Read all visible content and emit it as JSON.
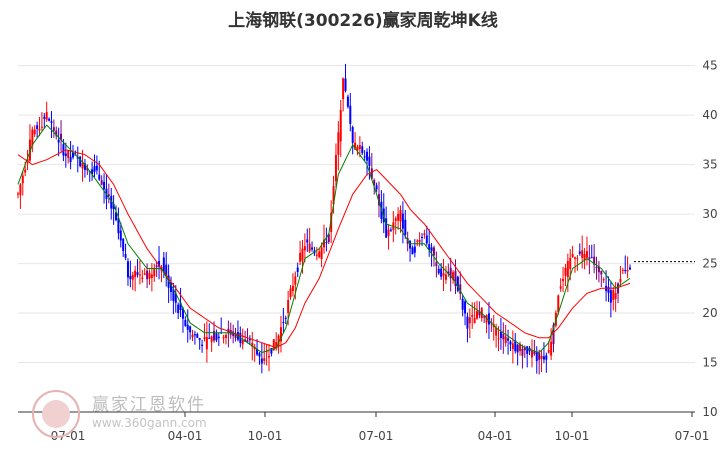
{
  "title": "上海钢联(300226)赢家周乾坤K线",
  "watermark": {
    "text": "赢家江恩软件",
    "url": "www.360gann.com"
  },
  "colors": {
    "up": "#ff0000",
    "down": "#0000ff",
    "neutral": "#800080",
    "ma_fast": "#008000",
    "ma_slow": "#ff0000",
    "last_price_line": "#000000"
  },
  "chart_data": {
    "type": "candlestick",
    "x_tick_labels": [
      "07-01",
      "04-01",
      "10-01",
      "07-01",
      "04-01",
      "10-01",
      "07-01"
    ],
    "y_ticks": [
      10,
      15,
      20,
      25,
      30,
      35,
      40,
      45
    ],
    "ylim": [
      10,
      48
    ],
    "grid": true,
    "last_price": 25.2,
    "approx_close_path": [
      [
        0,
        32
      ],
      [
        6,
        38
      ],
      [
        12,
        40
      ],
      [
        20,
        36
      ],
      [
        28,
        35
      ],
      [
        34,
        34
      ],
      [
        40,
        30
      ],
      [
        46,
        24
      ],
      [
        54,
        24
      ],
      [
        60,
        25
      ],
      [
        66,
        21
      ],
      [
        72,
        18
      ],
      [
        78,
        17
      ],
      [
        84,
        18
      ],
      [
        90,
        18
      ],
      [
        96,
        17
      ],
      [
        102,
        15.5
      ],
      [
        108,
        17
      ],
      [
        112,
        20
      ],
      [
        116,
        24
      ],
      [
        120,
        27
      ],
      [
        126,
        26
      ],
      [
        130,
        28
      ],
      [
        134,
        38
      ],
      [
        136,
        44
      ],
      [
        140,
        37
      ],
      [
        146,
        36
      ],
      [
        150,
        32
      ],
      [
        154,
        28
      ],
      [
        160,
        30
      ],
      [
        164,
        26
      ],
      [
        170,
        28
      ],
      [
        176,
        24
      ],
      [
        182,
        24
      ],
      [
        188,
        19
      ],
      [
        194,
        20
      ],
      [
        200,
        18
      ],
      [
        206,
        17
      ],
      [
        212,
        16
      ],
      [
        218,
        15.5
      ],
      [
        222,
        16
      ],
      [
        226,
        22
      ],
      [
        232,
        26
      ],
      [
        238,
        26
      ],
      [
        244,
        24
      ],
      [
        248,
        21
      ],
      [
        252,
        24
      ],
      [
        256,
        25
      ]
    ],
    "ma_fast_path": [
      [
        0,
        33
      ],
      [
        6,
        37
      ],
      [
        12,
        39
      ],
      [
        20,
        37
      ],
      [
        28,
        35
      ],
      [
        34,
        33
      ],
      [
        40,
        31
      ],
      [
        46,
        27
      ],
      [
        54,
        24.5
      ],
      [
        60,
        24.5
      ],
      [
        66,
        22
      ],
      [
        72,
        19
      ],
      [
        78,
        18
      ],
      [
        84,
        18
      ],
      [
        90,
        18
      ],
      [
        96,
        17
      ],
      [
        102,
        16
      ],
      [
        108,
        16.5
      ],
      [
        112,
        18.5
      ],
      [
        116,
        22
      ],
      [
        120,
        25.5
      ],
      [
        126,
        26.5
      ],
      [
        130,
        28
      ],
      [
        134,
        34
      ],
      [
        140,
        37
      ],
      [
        146,
        35
      ],
      [
        150,
        32
      ],
      [
        154,
        29
      ],
      [
        160,
        28.5
      ],
      [
        164,
        27
      ],
      [
        170,
        27
      ],
      [
        176,
        25
      ],
      [
        182,
        23.5
      ],
      [
        188,
        21
      ],
      [
        194,
        20
      ],
      [
        200,
        18.5
      ],
      [
        206,
        17.5
      ],
      [
        212,
        16.5
      ],
      [
        218,
        16
      ],
      [
        222,
        17
      ],
      [
        226,
        20
      ],
      [
        232,
        24.5
      ],
      [
        238,
        25.5
      ],
      [
        244,
        24.5
      ],
      [
        250,
        22.5
      ],
      [
        256,
        23.5
      ]
    ],
    "ma_slow_path": [
      [
        0,
        36
      ],
      [
        6,
        35
      ],
      [
        12,
        35.5
      ],
      [
        20,
        36.5
      ],
      [
        28,
        36
      ],
      [
        34,
        35
      ],
      [
        40,
        33
      ],
      [
        46,
        30
      ],
      [
        54,
        26.5
      ],
      [
        60,
        24.5
      ],
      [
        66,
        22.5
      ],
      [
        72,
        20.5
      ],
      [
        78,
        19.5
      ],
      [
        84,
        18.5
      ],
      [
        90,
        18
      ],
      [
        96,
        17.5
      ],
      [
        102,
        17
      ],
      [
        108,
        16.5
      ],
      [
        112,
        17
      ],
      [
        116,
        18.5
      ],
      [
        120,
        21
      ],
      [
        126,
        23.5
      ],
      [
        130,
        26
      ],
      [
        134,
        28.5
      ],
      [
        140,
        32
      ],
      [
        146,
        34
      ],
      [
        150,
        34.5
      ],
      [
        154,
        33.5
      ],
      [
        160,
        32
      ],
      [
        164,
        30.5
      ],
      [
        170,
        29
      ],
      [
        176,
        27
      ],
      [
        182,
        25
      ],
      [
        188,
        23
      ],
      [
        194,
        21.5
      ],
      [
        200,
        20
      ],
      [
        206,
        19
      ],
      [
        212,
        18
      ],
      [
        218,
        17.5
      ],
      [
        222,
        17.5
      ],
      [
        226,
        18.5
      ],
      [
        232,
        20.5
      ],
      [
        238,
        22
      ],
      [
        244,
        22.5
      ],
      [
        250,
        22.5
      ],
      [
        256,
        23
      ]
    ]
  }
}
